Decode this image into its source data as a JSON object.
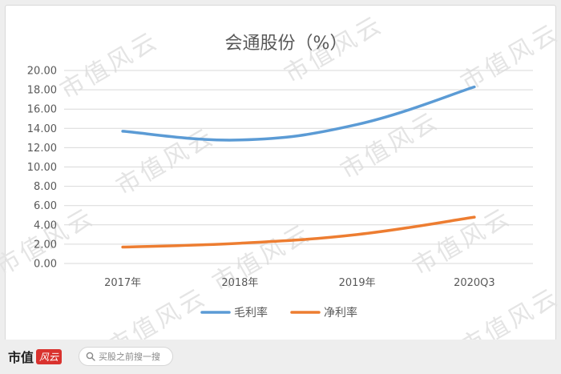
{
  "chart_data": {
    "type": "line",
    "title": "会通股份（%）",
    "categories": [
      "2017年",
      "2018年",
      "2019年",
      "2020Q3"
    ],
    "series": [
      {
        "name": "毛利率",
        "color": "#5b9bd5",
        "values": [
          13.7,
          12.8,
          14.4,
          18.3
        ]
      },
      {
        "name": "净利率",
        "color": "#ed7d31",
        "values": [
          1.7,
          2.1,
          3.0,
          4.8
        ]
      }
    ],
    "ylim": [
      0,
      20
    ],
    "yticks": [
      "0.00",
      "2.00",
      "4.00",
      "6.00",
      "8.00",
      "10.00",
      "12.00",
      "14.00",
      "16.00",
      "18.00",
      "20.00"
    ],
    "grid": true,
    "legend": "bottom"
  },
  "watermark": {
    "text": "市值风云"
  },
  "footer": {
    "brand": "市值",
    "brand_badge": "风云",
    "search_icon": "search-icon",
    "search_text": "买股之前搜一搜"
  }
}
